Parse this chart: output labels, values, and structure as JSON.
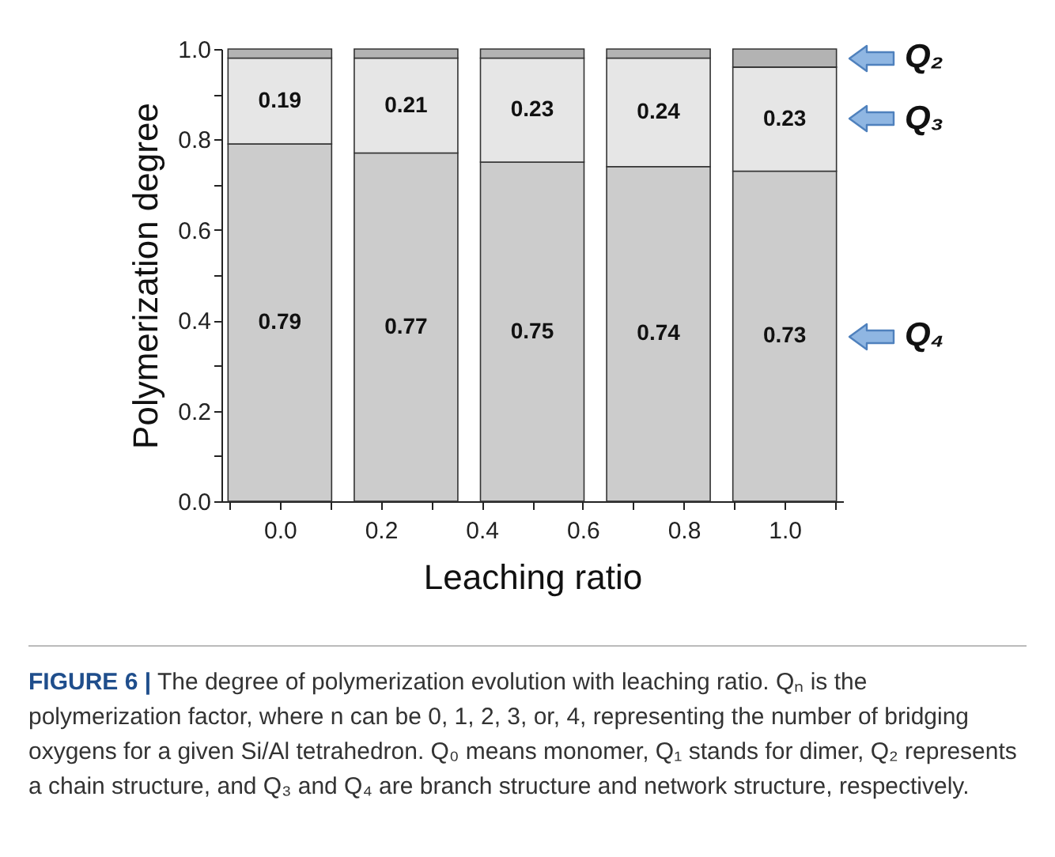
{
  "chart_data": {
    "type": "bar",
    "stacked": true,
    "x": [
      0,
      0.25,
      0.5,
      0.75,
      1.0
    ],
    "xlabel": "Leaching ratio",
    "ylabel": "Polymerization degree",
    "xlim": [
      -0.1,
      1.1
    ],
    "xticks": [
      {
        "value": -0.1,
        "label": null
      },
      {
        "value": 0,
        "label": "0.0"
      },
      {
        "value": 0.1,
        "label": null
      },
      {
        "value": 0.2,
        "label": "0.2"
      },
      {
        "value": 0.3,
        "label": null
      },
      {
        "value": 0.4,
        "label": "0.4"
      },
      {
        "value": 0.5,
        "label": null
      },
      {
        "value": 0.6,
        "label": "0.6"
      },
      {
        "value": 0.7,
        "label": null
      },
      {
        "value": 0.8,
        "label": "0.8"
      },
      {
        "value": 0.9,
        "label": null
      },
      {
        "value": 1.0,
        "label": "1.0"
      },
      {
        "value": 1.1,
        "label": null
      }
    ],
    "ylim": [
      0,
      1.0
    ],
    "yticks": [
      {
        "value": 0,
        "label": "0.0"
      },
      {
        "value": 0.1,
        "label": null
      },
      {
        "value": 0.2,
        "label": "0.2"
      },
      {
        "value": 0.3,
        "label": null
      },
      {
        "value": 0.4,
        "label": "0.4"
      },
      {
        "value": 0.5,
        "label": null
      },
      {
        "value": 0.6,
        "label": "0.6"
      },
      {
        "value": 0.7,
        "label": null
      },
      {
        "value": 0.8,
        "label": "0.8"
      },
      {
        "value": 0.9,
        "label": null
      },
      {
        "value": 1.0,
        "label": "1.0"
      }
    ],
    "series": [
      {
        "name": "Q₄",
        "color": "#cccccc",
        "values": [
          0.79,
          0.77,
          0.75,
          0.74,
          0.73
        ],
        "value_labels": [
          "0.79",
          "0.77",
          "0.75",
          "0.74",
          "0.73"
        ]
      },
      {
        "name": "Q₃",
        "color": "#e6e6e6",
        "values": [
          0.19,
          0.21,
          0.23,
          0.24,
          0.23
        ],
        "value_labels": [
          "0.19",
          "0.21",
          "0.23",
          "0.24",
          "0.23"
        ]
      },
      {
        "name": "Q₂",
        "color": "#b3b3b3",
        "values": [
          0.02,
          0.02,
          0.02,
          0.02,
          0.04
        ]
      }
    ],
    "annotations": [
      "FIGURE 6 | The degree of polymerization evolution with leaching ratio. Qₙ is the polymerization factor, where n can be 0, 1, 2, 3, or, 4, representing the number of bridging oxygens for a given Si/Al tetrahedron. Q₀ means monomer, Q₁ stands for dimer, Q₂ represents a chain structure, and Q₃ and Q₄ are branch structure and network structure, respectively."
    ]
  }
}
